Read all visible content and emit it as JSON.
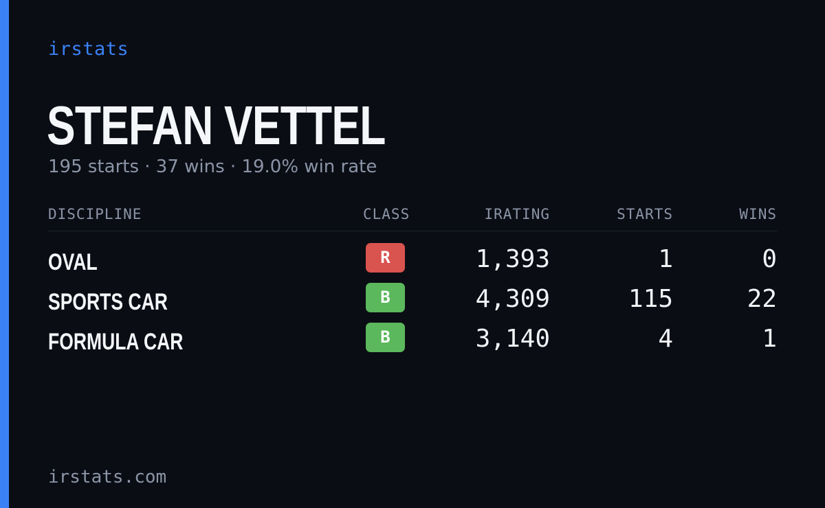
{
  "brand": "irstats",
  "driver": {
    "name": "STEFAN VETTEL",
    "summary": "195 starts · 37 wins · 19.0% win rate"
  },
  "table": {
    "headers": {
      "discipline": "DISCIPLINE",
      "class": "CLASS",
      "irating": "IRATING",
      "starts": "STARTS",
      "wins": "WINS"
    },
    "rows": [
      {
        "discipline": "OVAL",
        "class": "R",
        "class_color": "#d9534f",
        "irating": "1,393",
        "starts": "1",
        "wins": "0"
      },
      {
        "discipline": "SPORTS CAR",
        "class": "B",
        "class_color": "#5cb85c",
        "irating": "4,309",
        "starts": "115",
        "wins": "22"
      },
      {
        "discipline": "FORMULA CAR",
        "class": "B",
        "class_color": "#5cb85c",
        "irating": "3,140",
        "starts": "4",
        "wins": "1"
      }
    ]
  },
  "footer": "irstats.com",
  "colors": {
    "accent": "#3b82f6",
    "background": "#0a0d14",
    "muted_text": "#8c95a7"
  }
}
